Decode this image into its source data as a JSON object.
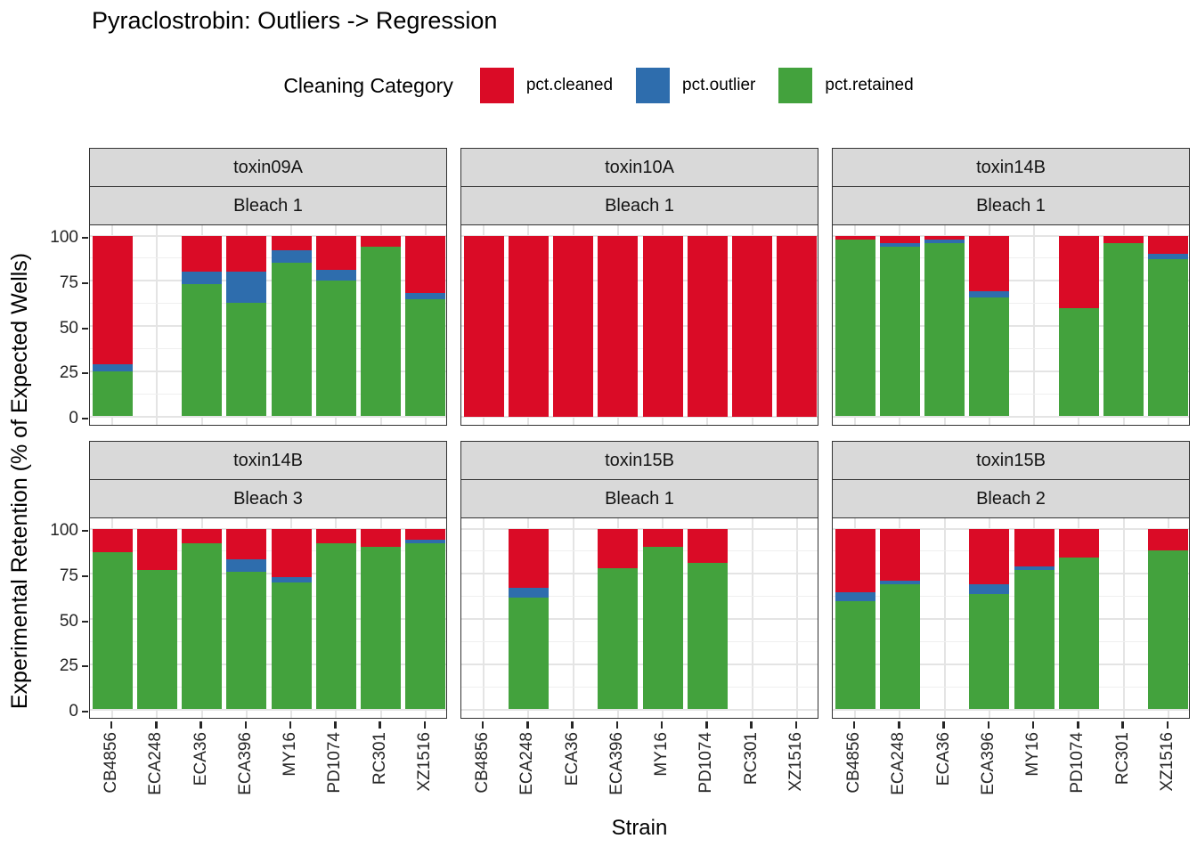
{
  "title": "Pyraclostrobin: Outliers -> Regression",
  "legend": {
    "title": "Cleaning Category",
    "items": [
      {
        "label": "pct.cleaned",
        "color": "#DA0B26"
      },
      {
        "label": "pct.outlier",
        "color": "#2E6DAD"
      },
      {
        "label": "pct.retained",
        "color": "#43A23D"
      }
    ]
  },
  "axes": {
    "x_label": "Strain",
    "y_label": "Experimental Retention (% of Expected Wells)"
  },
  "colors": {
    "strip_background": "#D9D9D9",
    "panel_border": "#333333",
    "grid_major": "#E4E4E4",
    "grid_minor": "#EFEFEF",
    "axis_text": "#262626"
  },
  "chart_data": {
    "type": "bar",
    "stacked": true,
    "categories": [
      "CB4856",
      "ECA248",
      "ECA36",
      "ECA396",
      "MY16",
      "PD1074",
      "RC301",
      "XZ1516"
    ],
    "stack_order": [
      "pct.retained",
      "pct.outlier",
      "pct.cleaned"
    ],
    "ylim": [
      0,
      100
    ],
    "y_ticks": [
      100,
      75,
      50,
      25,
      0
    ],
    "y_minor_ticks": [
      87.5,
      62.5,
      37.5,
      12.5
    ],
    "grid": true,
    "legend_position": "top",
    "facet_layout": "2 rows x 3 cols",
    "facets": [
      {
        "toxin": "toxin09A",
        "bleach": "Bleach 1",
        "bars": [
          {
            "strain": "CB4856",
            "pct.retained": 25,
            "pct.outlier": 4,
            "pct.cleaned": 71
          },
          {
            "strain": "ECA36",
            "pct.retained": 73,
            "pct.outlier": 7,
            "pct.cleaned": 20
          },
          {
            "strain": "ECA396",
            "pct.retained": 63,
            "pct.outlier": 17,
            "pct.cleaned": 20
          },
          {
            "strain": "MY16",
            "pct.retained": 85,
            "pct.outlier": 7,
            "pct.cleaned": 8
          },
          {
            "strain": "PD1074",
            "pct.retained": 75,
            "pct.outlier": 6,
            "pct.cleaned": 19
          },
          {
            "strain": "RC301",
            "pct.retained": 94,
            "pct.outlier": 0,
            "pct.cleaned": 6
          },
          {
            "strain": "XZ1516",
            "pct.retained": 65,
            "pct.outlier": 3,
            "pct.cleaned": 32
          }
        ]
      },
      {
        "toxin": "toxin10A",
        "bleach": "Bleach 1",
        "bars": [
          {
            "strain": "CB4856",
            "pct.retained": 0,
            "pct.outlier": 0,
            "pct.cleaned": 100
          },
          {
            "strain": "ECA248",
            "pct.retained": 0,
            "pct.outlier": 0,
            "pct.cleaned": 100
          },
          {
            "strain": "ECA36",
            "pct.retained": 0,
            "pct.outlier": 0,
            "pct.cleaned": 100
          },
          {
            "strain": "ECA396",
            "pct.retained": 0,
            "pct.outlier": 0,
            "pct.cleaned": 100
          },
          {
            "strain": "MY16",
            "pct.retained": 0,
            "pct.outlier": 0,
            "pct.cleaned": 100
          },
          {
            "strain": "PD1074",
            "pct.retained": 0,
            "pct.outlier": 0,
            "pct.cleaned": 100
          },
          {
            "strain": "RC301",
            "pct.retained": 0,
            "pct.outlier": 0,
            "pct.cleaned": 100
          },
          {
            "strain": "XZ1516",
            "pct.retained": 0,
            "pct.outlier": 0,
            "pct.cleaned": 100
          }
        ]
      },
      {
        "toxin": "toxin14B",
        "bleach": "Bleach 1",
        "bars": [
          {
            "strain": "CB4856",
            "pct.retained": 98,
            "pct.outlier": 0,
            "pct.cleaned": 2
          },
          {
            "strain": "ECA248",
            "pct.retained": 94,
            "pct.outlier": 2,
            "pct.cleaned": 4
          },
          {
            "strain": "ECA36",
            "pct.retained": 96,
            "pct.outlier": 2,
            "pct.cleaned": 2
          },
          {
            "strain": "ECA396",
            "pct.retained": 66,
            "pct.outlier": 3,
            "pct.cleaned": 31
          },
          {
            "strain": "PD1074",
            "pct.retained": 60,
            "pct.outlier": 0,
            "pct.cleaned": 40
          },
          {
            "strain": "RC301",
            "pct.retained": 96,
            "pct.outlier": 0,
            "pct.cleaned": 4
          },
          {
            "strain": "XZ1516",
            "pct.retained": 87,
            "pct.outlier": 3,
            "pct.cleaned": 10
          }
        ]
      },
      {
        "toxin": "toxin14B",
        "bleach": "Bleach 3",
        "bars": [
          {
            "strain": "CB4856",
            "pct.retained": 87,
            "pct.outlier": 0,
            "pct.cleaned": 13
          },
          {
            "strain": "ECA248",
            "pct.retained": 77,
            "pct.outlier": 0,
            "pct.cleaned": 23
          },
          {
            "strain": "ECA36",
            "pct.retained": 92,
            "pct.outlier": 0,
            "pct.cleaned": 8
          },
          {
            "strain": "ECA396",
            "pct.retained": 76,
            "pct.outlier": 7,
            "pct.cleaned": 17
          },
          {
            "strain": "MY16",
            "pct.retained": 70,
            "pct.outlier": 3,
            "pct.cleaned": 27
          },
          {
            "strain": "PD1074",
            "pct.retained": 92,
            "pct.outlier": 0,
            "pct.cleaned": 8
          },
          {
            "strain": "RC301",
            "pct.retained": 90,
            "pct.outlier": 0,
            "pct.cleaned": 10
          },
          {
            "strain": "XZ1516",
            "pct.retained": 92,
            "pct.outlier": 2,
            "pct.cleaned": 6
          }
        ]
      },
      {
        "toxin": "toxin15B",
        "bleach": "Bleach 1",
        "bars": [
          {
            "strain": "ECA248",
            "pct.retained": 62,
            "pct.outlier": 5,
            "pct.cleaned": 33
          },
          {
            "strain": "ECA396",
            "pct.retained": 78,
            "pct.outlier": 0,
            "pct.cleaned": 22
          },
          {
            "strain": "MY16",
            "pct.retained": 90,
            "pct.outlier": 0,
            "pct.cleaned": 10
          },
          {
            "strain": "PD1074",
            "pct.retained": 81,
            "pct.outlier": 0,
            "pct.cleaned": 19
          }
        ]
      },
      {
        "toxin": "toxin15B",
        "bleach": "Bleach 2",
        "bars": [
          {
            "strain": "CB4856",
            "pct.retained": 60,
            "pct.outlier": 5,
            "pct.cleaned": 35
          },
          {
            "strain": "ECA248",
            "pct.retained": 69,
            "pct.outlier": 2,
            "pct.cleaned": 29
          },
          {
            "strain": "ECA396",
            "pct.retained": 64,
            "pct.outlier": 5,
            "pct.cleaned": 31
          },
          {
            "strain": "MY16",
            "pct.retained": 77,
            "pct.outlier": 2,
            "pct.cleaned": 21
          },
          {
            "strain": "PD1074",
            "pct.retained": 84,
            "pct.outlier": 0,
            "pct.cleaned": 16
          },
          {
            "strain": "XZ1516",
            "pct.retained": 88,
            "pct.outlier": 0,
            "pct.cleaned": 12
          }
        ]
      }
    ]
  }
}
